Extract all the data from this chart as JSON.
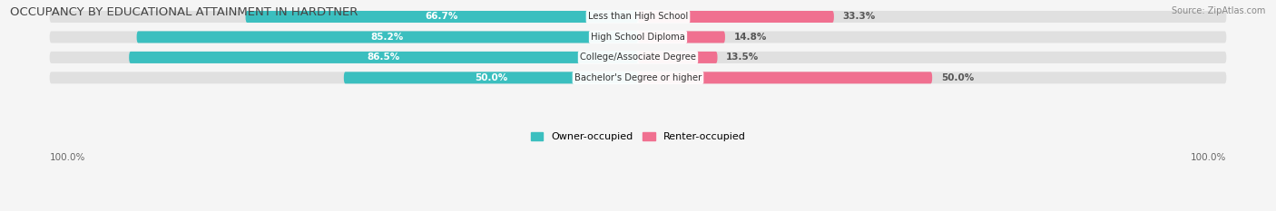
{
  "title": "OCCUPANCY BY EDUCATIONAL ATTAINMENT IN HARDTNER",
  "source": "Source: ZipAtlas.com",
  "categories": [
    "Less than High School",
    "High School Diploma",
    "College/Associate Degree",
    "Bachelor's Degree or higher"
  ],
  "owner_values": [
    66.7,
    85.2,
    86.5,
    50.0
  ],
  "renter_values": [
    33.3,
    14.8,
    13.5,
    50.0
  ],
  "owner_color": "#3bbfbf",
  "renter_color": "#f07090",
  "bar_bg_color": "#e0e0e0",
  "owner_label": "Owner-occupied",
  "renter_label": "Renter-occupied",
  "bar_height": 0.58,
  "background_color": "#f5f5f5",
  "legend_fontsize": 8,
  "pct_fontsize": 7.5,
  "cat_fontsize": 7.2,
  "title_fontsize": 9.5
}
